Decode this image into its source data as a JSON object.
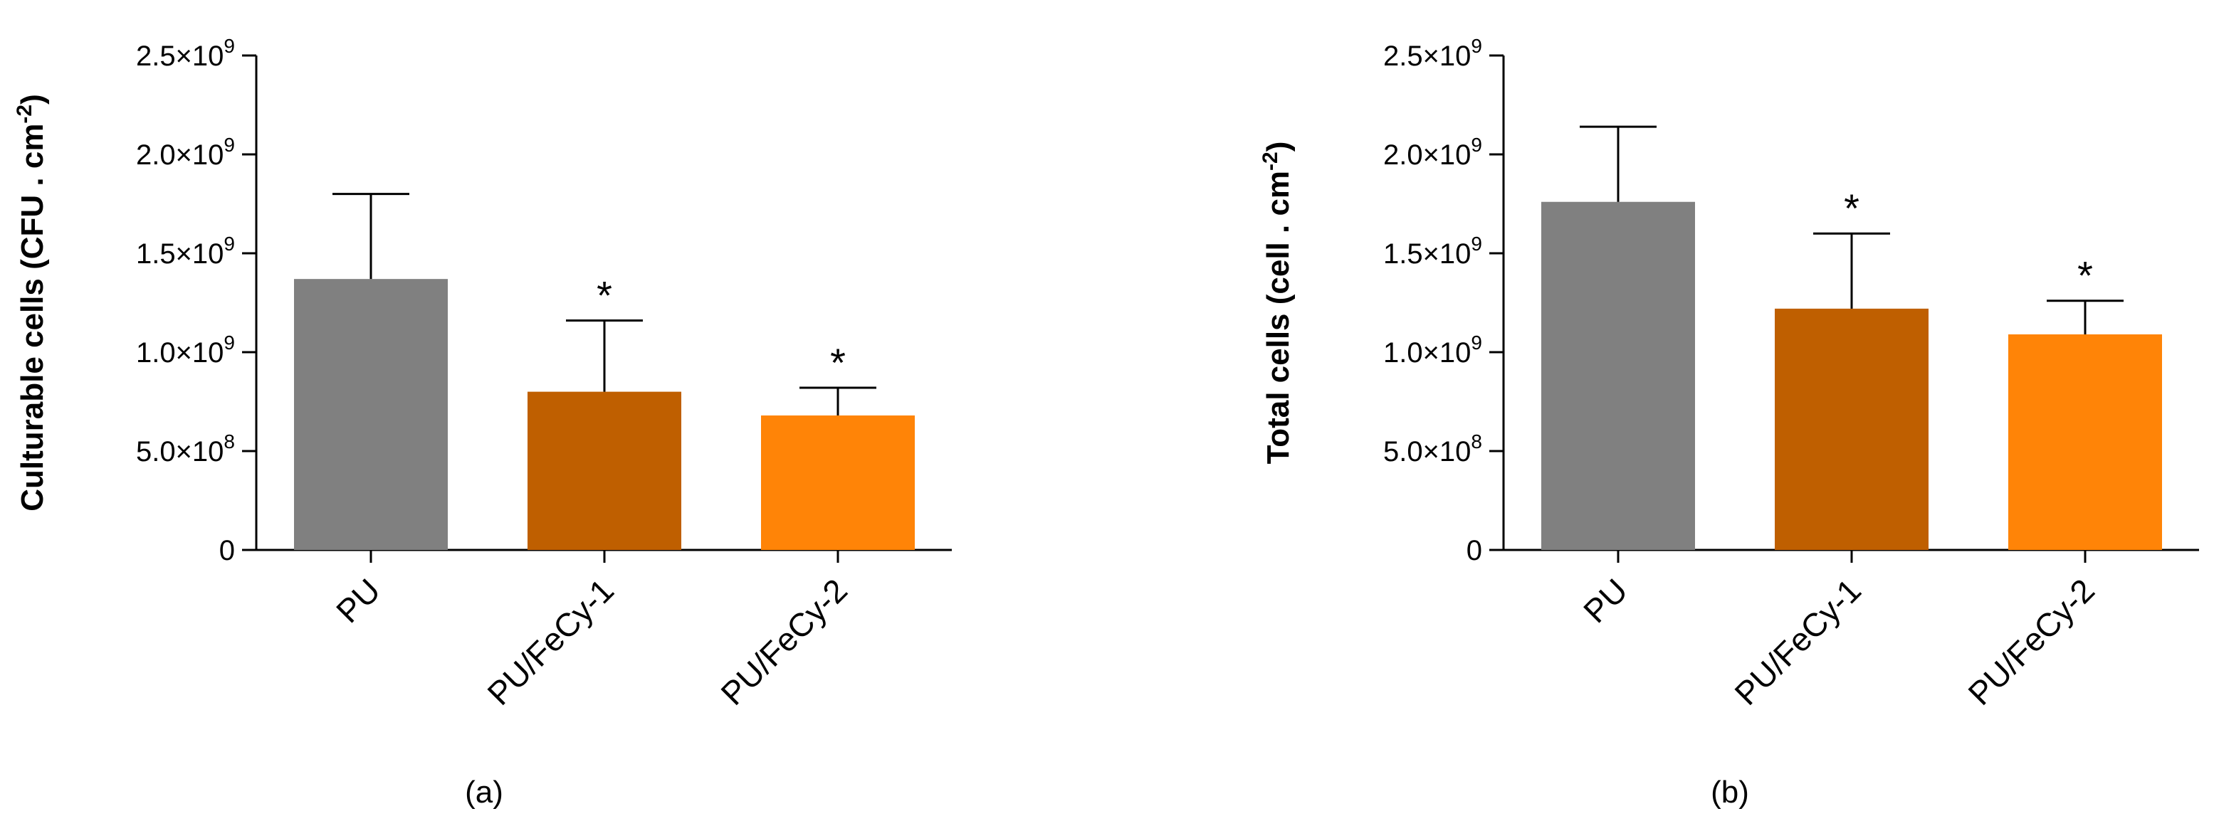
{
  "colors": {
    "PU": "#808080",
    "PU/FeCy-1": "#bf5f00",
    "PU/FeCy-2": "#ff8407",
    "axis": "#000000"
  },
  "chart_data": [
    {
      "type": "bar",
      "panel_label": "(a)",
      "ylabel_main": "Culturable cells (CFU . cm",
      "ylabel_sup": "-2",
      "ylabel_end": ")",
      "categories": [
        "PU",
        "PU/FeCy-1",
        "PU/FeCy-2"
      ],
      "values": [
        1370000000.0,
        800000000.0,
        680000000.0
      ],
      "errors": [
        430000000.0,
        360000000.0,
        140000000.0
      ],
      "significance": [
        "",
        "*",
        "*"
      ],
      "ylim": [
        0,
        2500000000.0
      ],
      "ticks": [
        {
          "value": 0,
          "mant": "0",
          "exp": ""
        },
        {
          "value": 500000000.0,
          "mant": "5.0×10",
          "exp": "8"
        },
        {
          "value": 1000000000.0,
          "mant": "1.0×10",
          "exp": "9"
        },
        {
          "value": 1500000000.0,
          "mant": "1.5×10",
          "exp": "9"
        },
        {
          "value": 2000000000.0,
          "mant": "2.0×10",
          "exp": "9"
        },
        {
          "value": 2500000000.0,
          "mant": "2.5×10",
          "exp": "9"
        }
      ],
      "grid": false
    },
    {
      "type": "bar",
      "panel_label": "(b)",
      "ylabel_main": "Total cells (cell . cm",
      "ylabel_sup": "-2",
      "ylabel_end": ")",
      "categories": [
        "PU",
        "PU/FeCy-1",
        "PU/FeCy-2"
      ],
      "values": [
        1760000000.0,
        1220000000.0,
        1090000000.0
      ],
      "errors": [
        380000000.0,
        380000000.0,
        170000000.0
      ],
      "significance": [
        "",
        "*",
        "*"
      ],
      "ylim": [
        0,
        2500000000.0
      ],
      "ticks": [
        {
          "value": 0,
          "mant": "0",
          "exp": ""
        },
        {
          "value": 500000000.0,
          "mant": "5.0×10",
          "exp": "8"
        },
        {
          "value": 1000000000.0,
          "mant": "1.0×10",
          "exp": "9"
        },
        {
          "value": 1500000000.0,
          "mant": "1.5×10",
          "exp": "9"
        },
        {
          "value": 2000000000.0,
          "mant": "2.0×10",
          "exp": "9"
        },
        {
          "value": 2500000000.0,
          "mant": "2.5×10",
          "exp": "9"
        }
      ],
      "grid": false
    }
  ]
}
